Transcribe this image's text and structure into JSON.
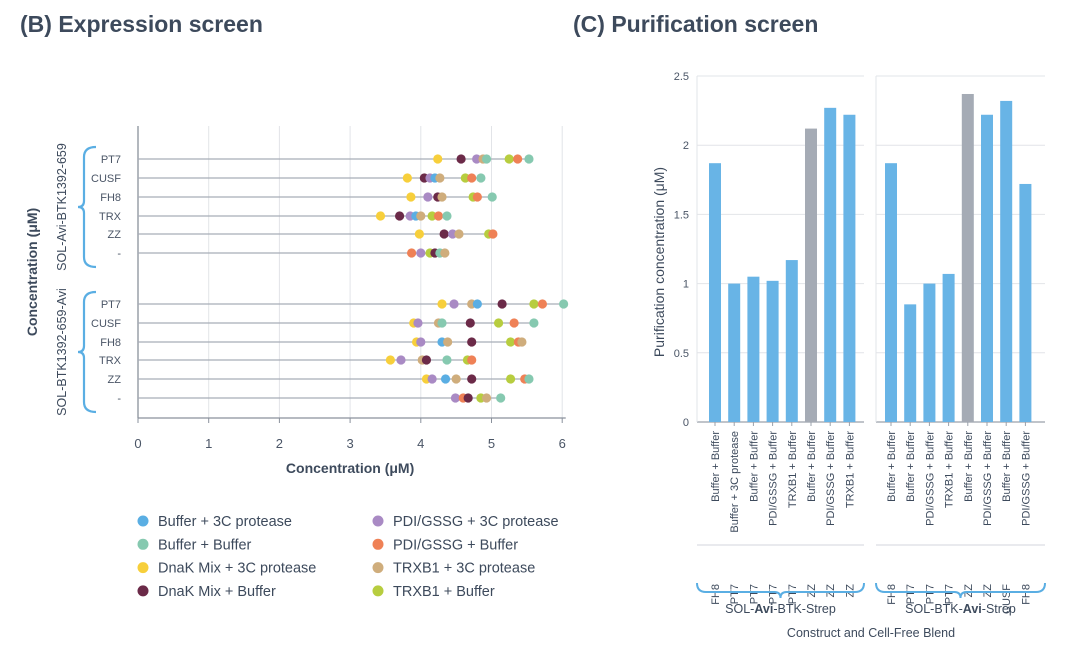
{
  "panel_b_title": "(B) Expression screen",
  "panel_c_title": "(C) Purification screen",
  "legend_colors": {
    "Buffer + 3C protease": "#5aaee3",
    "Buffer + Buffer": "#86c9b0",
    "DnaK Mix + 3C protease": "#f7cf3b",
    "DnaK Mix + Buffer": "#6b2a48",
    "PDI/GSSG + 3C protease": "#a98ac4",
    "PDI/GSSG + Buffer": "#ef8156",
    "TRXB1 + 3C protease": "#cfad7c",
    "TRXB1 + Buffer": "#b7cd3f"
  },
  "bar_colors": {
    "default": "#68b4e6",
    "highlight": "#a5abb5"
  },
  "chart_data": [
    {
      "type": "scatter",
      "title": "(B) Expression screen",
      "xlabel": "Concentration (μM)",
      "ylabel": "Concentration (μM)",
      "xlim": [
        0,
        6
      ],
      "xticks": [
        0,
        1,
        2,
        3,
        4,
        5,
        6
      ],
      "grid": "vertical",
      "legend_position": "bottom",
      "legend": [
        "Buffer + 3C protease",
        "PDI/GSSG + 3C protease",
        "Buffer + Buffer",
        "PDI/GSSG + Buffer",
        "DnaK Mix + 3C protease",
        "TRXB1 + 3C protease",
        "DnaK Mix + Buffer",
        "TRXB1 + Buffer"
      ],
      "groups": [
        {
          "name": "SOL-Avi-BTK1392-659",
          "rows": [
            {
              "label": "PT7",
              "points": [
                {
                  "series": "DnaK Mix + 3C protease",
                  "x": 4.24
                },
                {
                  "series": "DnaK Mix + Buffer",
                  "x": 4.57
                },
                {
                  "series": "PDI/GSSG + 3C protease",
                  "x": 4.79
                },
                {
                  "series": "TRXB1 + 3C protease",
                  "x": 4.88
                },
                {
                  "series": "Buffer + Buffer",
                  "x": 4.93
                },
                {
                  "series": "TRXB1 + Buffer",
                  "x": 5.25
                },
                {
                  "series": "PDI/GSSG + Buffer",
                  "x": 5.37
                },
                {
                  "series": "Buffer + Buffer",
                  "x": 5.53
                }
              ]
            },
            {
              "label": "CUSF",
              "points": [
                {
                  "series": "DnaK Mix + 3C protease",
                  "x": 3.81
                },
                {
                  "series": "DnaK Mix + Buffer",
                  "x": 4.05
                },
                {
                  "series": "PDI/GSSG + 3C protease",
                  "x": 4.13
                },
                {
                  "series": "Buffer + 3C protease",
                  "x": 4.2
                },
                {
                  "series": "TRXB1 + 3C protease",
                  "x": 4.27
                },
                {
                  "series": "TRXB1 + Buffer",
                  "x": 4.63
                },
                {
                  "series": "PDI/GSSG + Buffer",
                  "x": 4.72
                },
                {
                  "series": "Buffer + Buffer",
                  "x": 4.85
                }
              ]
            },
            {
              "label": "FH8",
              "points": [
                {
                  "series": "DnaK Mix + 3C protease",
                  "x": 3.86
                },
                {
                  "series": "PDI/GSSG + 3C protease",
                  "x": 4.1
                },
                {
                  "series": "DnaK Mix + Buffer",
                  "x": 4.24
                },
                {
                  "series": "TRXB1 + 3C protease",
                  "x": 4.3
                },
                {
                  "series": "TRXB1 + Buffer",
                  "x": 4.74
                },
                {
                  "series": "PDI/GSSG + Buffer",
                  "x": 4.8
                },
                {
                  "series": "Buffer + Buffer",
                  "x": 5.01
                }
              ]
            },
            {
              "label": "TRX",
              "points": [
                {
                  "series": "DnaK Mix + 3C protease",
                  "x": 3.43
                },
                {
                  "series": "DnaK Mix + Buffer",
                  "x": 3.7
                },
                {
                  "series": "PDI/GSSG + 3C protease",
                  "x": 3.85
                },
                {
                  "series": "Buffer + 3C protease",
                  "x": 3.93
                },
                {
                  "series": "TRXB1 + 3C protease",
                  "x": 4.0
                },
                {
                  "series": "TRXB1 + Buffer",
                  "x": 4.16
                },
                {
                  "series": "PDI/GSSG + Buffer",
                  "x": 4.25
                },
                {
                  "series": "Buffer + Buffer",
                  "x": 4.37
                }
              ]
            },
            {
              "label": "ZZ",
              "points": [
                {
                  "series": "DnaK Mix + 3C protease",
                  "x": 3.98
                },
                {
                  "series": "DnaK Mix + Buffer",
                  "x": 4.33
                },
                {
                  "series": "PDI/GSSG + 3C protease",
                  "x": 4.45
                },
                {
                  "series": "TRXB1 + 3C protease",
                  "x": 4.54
                },
                {
                  "series": "TRXB1 + Buffer",
                  "x": 4.96
                },
                {
                  "series": "PDI/GSSG + Buffer",
                  "x": 5.02
                }
              ]
            },
            {
              "label": "-",
              "points": [
                {
                  "series": "PDI/GSSG + Buffer",
                  "x": 3.87
                },
                {
                  "series": "PDI/GSSG + 3C protease",
                  "x": 4.0
                },
                {
                  "series": "TRXB1 + Buffer",
                  "x": 4.13
                },
                {
                  "series": "DnaK Mix + Buffer",
                  "x": 4.2
                },
                {
                  "series": "Buffer + Buffer",
                  "x": 4.27
                },
                {
                  "series": "TRXB1 + 3C protease",
                  "x": 4.34
                }
              ]
            }
          ]
        },
        {
          "name": "SOL-BTK1392-659-Avi",
          "rows": [
            {
              "label": "PT7",
              "points": [
                {
                  "series": "DnaK Mix + 3C protease",
                  "x": 4.3
                },
                {
                  "series": "PDI/GSSG + 3C protease",
                  "x": 4.47
                },
                {
                  "series": "TRXB1 + 3C protease",
                  "x": 4.72
                },
                {
                  "series": "Buffer + 3C protease",
                  "x": 4.8
                },
                {
                  "series": "DnaK Mix + Buffer",
                  "x": 5.15
                },
                {
                  "series": "TRXB1 + Buffer",
                  "x": 5.6
                },
                {
                  "series": "PDI/GSSG + Buffer",
                  "x": 5.72
                },
                {
                  "series": "Buffer + Buffer",
                  "x": 6.02
                }
              ]
            },
            {
              "label": "CUSF",
              "points": [
                {
                  "series": "DnaK Mix + 3C protease",
                  "x": 3.9
                },
                {
                  "series": "PDI/GSSG + 3C protease",
                  "x": 3.96
                },
                {
                  "series": "TRXB1 + 3C protease",
                  "x": 4.25
                },
                {
                  "series": "Buffer + Buffer",
                  "x": 4.3
                },
                {
                  "series": "DnaK Mix + Buffer",
                  "x": 4.7
                },
                {
                  "series": "TRXB1 + Buffer",
                  "x": 5.1
                },
                {
                  "series": "PDI/GSSG + Buffer",
                  "x": 5.32
                },
                {
                  "series": "Buffer + Buffer",
                  "x": 5.6
                }
              ]
            },
            {
              "label": "FH8",
              "points": [
                {
                  "series": "DnaK Mix + 3C protease",
                  "x": 3.94
                },
                {
                  "series": "PDI/GSSG + 3C protease",
                  "x": 4.0
                },
                {
                  "series": "Buffer + 3C protease",
                  "x": 4.3
                },
                {
                  "series": "TRXB1 + 3C protease",
                  "x": 4.38
                },
                {
                  "series": "DnaK Mix + Buffer",
                  "x": 4.72
                },
                {
                  "series": "TRXB1 + Buffer",
                  "x": 5.27
                },
                {
                  "series": "PDI/GSSG + Buffer",
                  "x": 5.38
                },
                {
                  "series": "TRXB1 + 3C protease",
                  "x": 5.43
                }
              ]
            },
            {
              "label": "TRX",
              "points": [
                {
                  "series": "DnaK Mix + 3C protease",
                  "x": 3.57
                },
                {
                  "series": "PDI/GSSG + 3C protease",
                  "x": 3.72
                },
                {
                  "series": "TRXB1 + 3C protease",
                  "x": 4.02
                },
                {
                  "series": "DnaK Mix + Buffer",
                  "x": 4.08
                },
                {
                  "series": "Buffer + Buffer",
                  "x": 4.37
                },
                {
                  "series": "TRXB1 + Buffer",
                  "x": 4.66
                },
                {
                  "series": "PDI/GSSG + Buffer",
                  "x": 4.72
                }
              ]
            },
            {
              "label": "ZZ",
              "points": [
                {
                  "series": "DnaK Mix + 3C protease",
                  "x": 4.08
                },
                {
                  "series": "PDI/GSSG + 3C protease",
                  "x": 4.16
                },
                {
                  "series": "Buffer + 3C protease",
                  "x": 4.35
                },
                {
                  "series": "TRXB1 + 3C protease",
                  "x": 4.5
                },
                {
                  "series": "DnaK Mix + Buffer",
                  "x": 4.72
                },
                {
                  "series": "TRXB1 + Buffer",
                  "x": 5.27
                },
                {
                  "series": "PDI/GSSG + Buffer",
                  "x": 5.47
                },
                {
                  "series": "Buffer + Buffer",
                  "x": 5.53
                }
              ]
            },
            {
              "label": "-",
              "points": [
                {
                  "series": "PDI/GSSG + 3C protease",
                  "x": 4.49
                },
                {
                  "series": "PDI/GSSG + Buffer",
                  "x": 4.6
                },
                {
                  "series": "DnaK Mix + Buffer",
                  "x": 4.67
                },
                {
                  "series": "TRXB1 + Buffer",
                  "x": 4.85
                },
                {
                  "series": "TRXB1 + 3C protease",
                  "x": 4.93
                },
                {
                  "series": "Buffer + Buffer",
                  "x": 5.13
                }
              ]
            }
          ]
        }
      ]
    },
    {
      "type": "bar",
      "title": "(C) Purification screen",
      "ylabel": "Purification concentration (μM)",
      "xlabel": "Construct and Cell-Free Blend",
      "ylim": [
        0,
        2.5
      ],
      "yticks": [
        "0",
        "0.5",
        "1",
        "1.5",
        "2",
        "2.5"
      ],
      "yticks_values": [
        0,
        0.5,
        1,
        1.5,
        2,
        2.5
      ],
      "grid": "horizontal",
      "groups": [
        {
          "name_parts": [
            "SOL-",
            "Avi",
            "-BTK-Strep"
          ],
          "bars": [
            {
              "blend": "Buffer + Buffer",
              "fusion": "FH8",
              "value": 1.87,
              "highlight": false
            },
            {
              "blend": "Buffer + 3C protease",
              "fusion": "PT7",
              "value": 1.0,
              "highlight": false
            },
            {
              "blend": "Buffer + Buffer",
              "fusion": "PT7",
              "value": 1.05,
              "highlight": false
            },
            {
              "blend": "PDI/GSSG + Buffer",
              "fusion": "PT7",
              "value": 1.02,
              "highlight": false
            },
            {
              "blend": "TRXB1 + Buffer",
              "fusion": "PT7",
              "value": 1.17,
              "highlight": false
            },
            {
              "blend": "Buffer + Buffer",
              "fusion": "ZZ",
              "value": 2.12,
              "highlight": true
            },
            {
              "blend": "PDI/GSSG + Buffer",
              "fusion": "ZZ",
              "value": 2.27,
              "highlight": false
            },
            {
              "blend": "TRXB1 + Buffer",
              "fusion": "ZZ",
              "value": 2.22,
              "highlight": false
            }
          ]
        },
        {
          "name_parts": [
            "SOL-BTK-",
            "Avi",
            "-Strep"
          ],
          "bars": [
            {
              "blend": "Buffer + Buffer",
              "fusion": "FH8",
              "value": 1.87,
              "highlight": false
            },
            {
              "blend": "Buffer + Buffer",
              "fusion": "PT7",
              "value": 0.85,
              "highlight": false
            },
            {
              "blend": "PDI/GSSG + Buffer",
              "fusion": "PT7",
              "value": 1.0,
              "highlight": false
            },
            {
              "blend": "TRXB1 + Buffer",
              "fusion": "PT7",
              "value": 1.07,
              "highlight": false
            },
            {
              "blend": "Buffer + Buffer",
              "fusion": "ZZ",
              "value": 2.37,
              "highlight": true
            },
            {
              "blend": "PDI/GSSG + Buffer",
              "fusion": "ZZ",
              "value": 2.22,
              "highlight": false
            },
            {
              "blend": "Buffer + Buffer",
              "fusion": "CUSF",
              "value": 2.32,
              "highlight": false
            },
            {
              "blend": "PDI/GSSG + Buffer",
              "fusion": "FH8",
              "value": 1.72,
              "highlight": false
            }
          ]
        }
      ]
    }
  ]
}
